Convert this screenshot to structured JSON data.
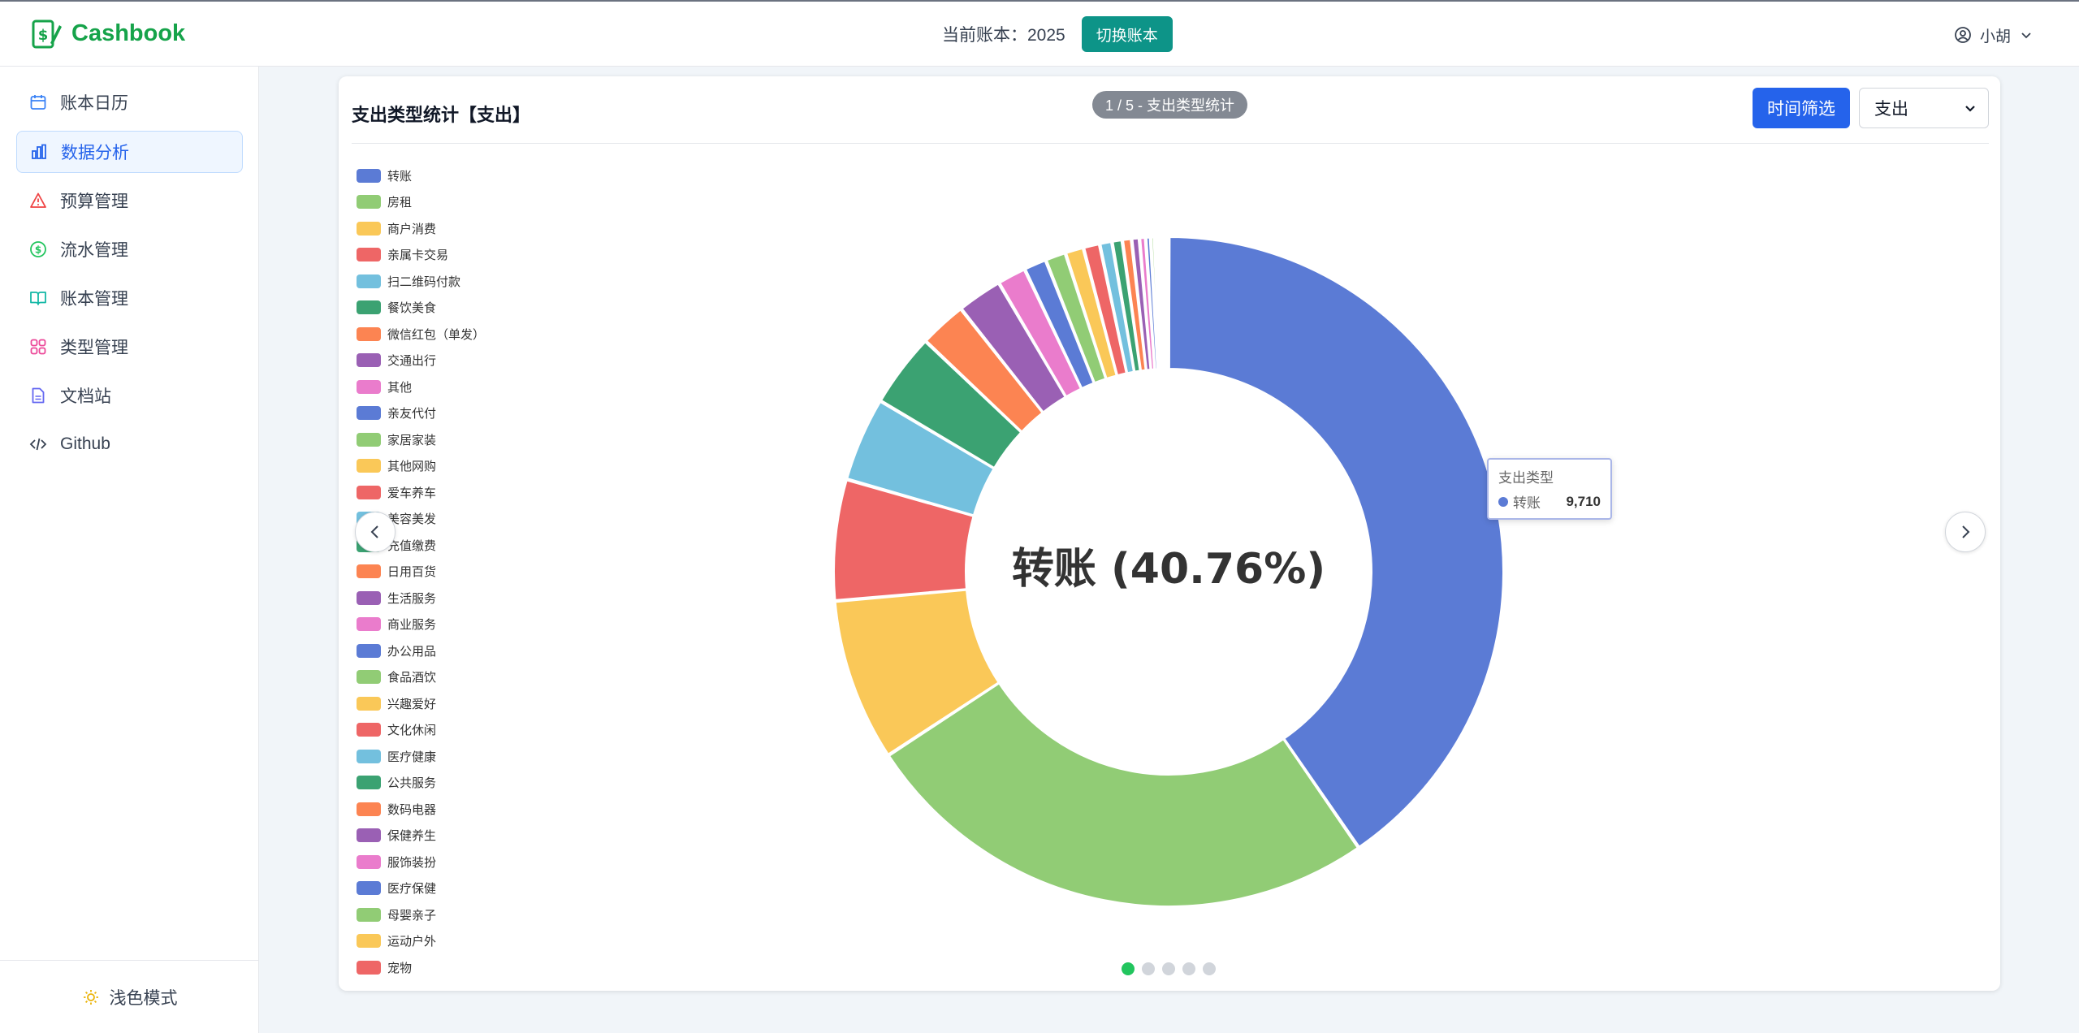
{
  "header": {
    "brand_name": "Cashbook",
    "current_book_label": "当前账本：2025",
    "switch_book_label": "切换账本",
    "user_name": "小胡"
  },
  "sidebar": {
    "items": [
      {
        "label": "账本日历",
        "icon": "calendar-icon"
      },
      {
        "label": "数据分析",
        "icon": "bar-chart-icon",
        "active": true
      },
      {
        "label": "预算管理",
        "icon": "warning-icon"
      },
      {
        "label": "流水管理",
        "icon": "dollar-circle-icon"
      },
      {
        "label": "账本管理",
        "icon": "book-open-icon"
      },
      {
        "label": "类型管理",
        "icon": "grid-icon"
      },
      {
        "label": "文档站",
        "icon": "file-icon"
      },
      {
        "label": "Github",
        "icon": "code-icon"
      }
    ],
    "theme_label": "浅色模式"
  },
  "card": {
    "title": "支出类型统计【支出】",
    "page_indicator": "1 / 5 - 支出类型统计",
    "time_filter_label": "时间筛选",
    "type_select_value": "支出"
  },
  "tooltip": {
    "title": "支出类型",
    "name": "转账",
    "value": "9,710"
  },
  "colors": [
    "#5b7bd5",
    "#91cc75",
    "#fac858",
    "#ee6666",
    "#73c0de",
    "#3ba272",
    "#fc8452",
    "#9a60b4",
    "#ea7ccc"
  ],
  "chart_data": {
    "type": "pie",
    "center_label": "转账 (40.76%)",
    "categories": [
      "转账",
      "房租",
      "商户消费",
      "亲属卡交易",
      "扫二维码付款",
      "餐饮美食",
      "微信红包（单发）",
      "交通出行",
      "其他",
      "亲友代付",
      "家居家装",
      "其他网购",
      "爱车养车",
      "美容美发",
      "充值缴费",
      "日用百货",
      "生活服务",
      "商业服务",
      "办公用品",
      "食品酒饮",
      "兴趣爱好",
      "文化休闲",
      "医疗健康",
      "公共服务",
      "数码电器",
      "保健养生",
      "服饰装扮",
      "医疗保健",
      "母婴亲子",
      "运动户外",
      "宠物"
    ],
    "values": [
      40.76,
      25.6,
      7.9,
      5.9,
      4.1,
      3.6,
      2.3,
      2.2,
      1.4,
      1.1,
      1.0,
      0.9,
      0.8,
      0.6,
      0.5,
      0.45,
      0.38,
      0.3,
      0.24,
      0.19,
      0.15,
      0.12,
      0.1,
      0.08,
      0.06,
      0.05,
      0.04,
      0.03,
      0.02,
      0.015,
      0.01
    ],
    "highlight": {
      "name": "转账",
      "value": 9710
    },
    "legend_position": "left"
  },
  "carousel": {
    "page_count": 5,
    "active_page": 1
  }
}
